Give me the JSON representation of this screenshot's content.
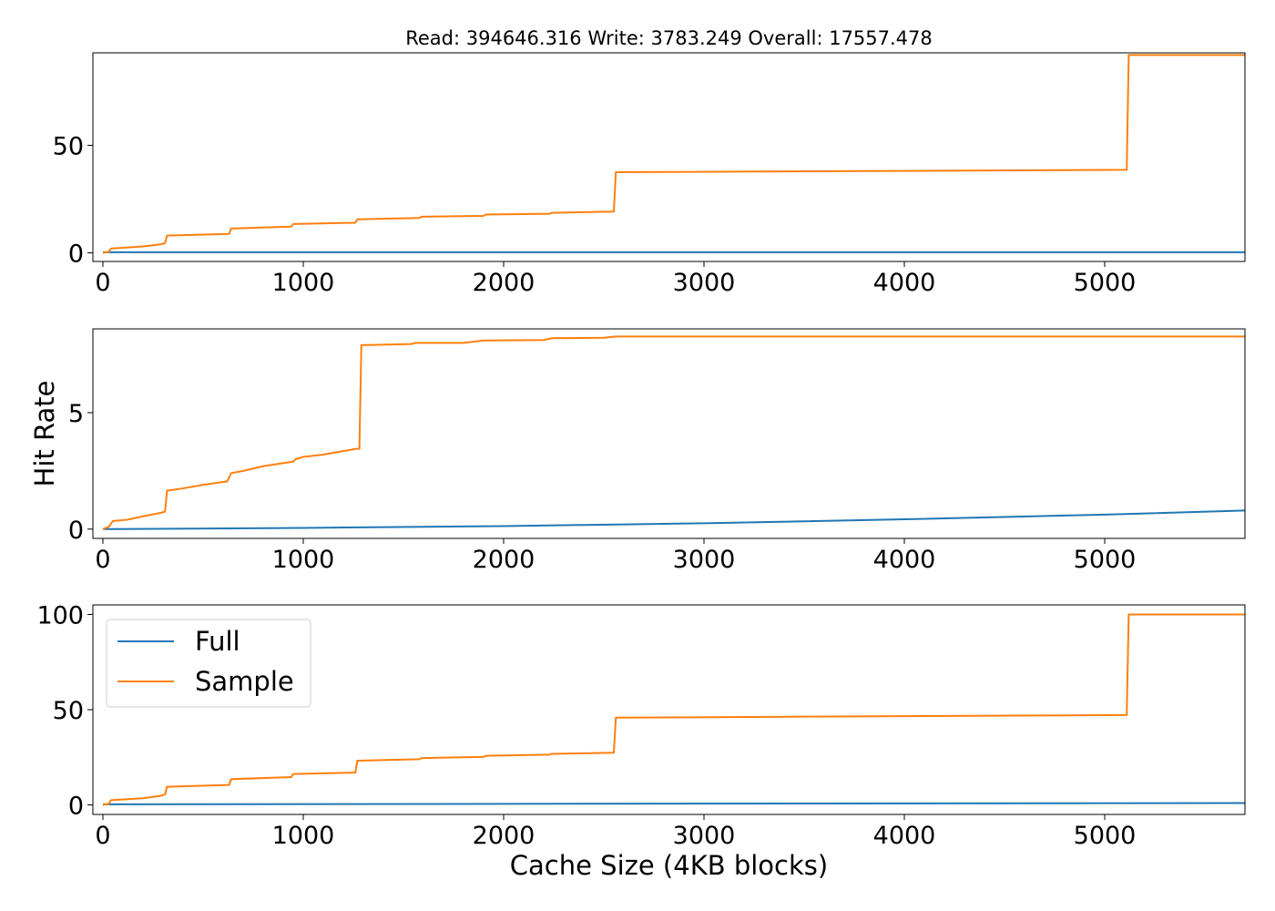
{
  "chart_data": [
    {
      "type": "line",
      "title": "Read: 394646.316 Write: 3783.249 Overall: 17557.478",
      "xlabel": "",
      "ylabel": "",
      "xlim": [
        -50,
        5700
      ],
      "ylim": [
        -4,
        93
      ],
      "xticks": [
        0,
        1000,
        2000,
        3000,
        4000,
        5000
      ],
      "yticks": [
        0,
        50
      ],
      "series": [
        {
          "name": "Full",
          "color": "#1f77b4",
          "x": [
            0,
            5700
          ],
          "y": [
            0.3,
            0.3
          ]
        },
        {
          "name": "Sample",
          "color": "#ff7f0e",
          "x": [
            0,
            30,
            40,
            200,
            290,
            310,
            320,
            630,
            640,
            940,
            950,
            1260,
            1270,
            1580,
            1590,
            1900,
            1910,
            2230,
            2240,
            2550,
            2560,
            5110,
            5120,
            5700
          ],
          "y": [
            0,
            0.5,
            2,
            3,
            4,
            4.5,
            8,
            8.8,
            11.3,
            12.2,
            13.4,
            14,
            15.6,
            16.2,
            16.8,
            17.2,
            17.8,
            18.2,
            18.6,
            19.2,
            37.5,
            38.6,
            92,
            92
          ]
        }
      ]
    },
    {
      "type": "line",
      "xlabel": "",
      "ylabel": "Hit Rate",
      "xlim": [
        -50,
        5700
      ],
      "ylim": [
        -0.4,
        8.6
      ],
      "xticks": [
        0,
        1000,
        2000,
        3000,
        4000,
        5000
      ],
      "yticks": [
        0,
        5
      ],
      "series": [
        {
          "name": "Full",
          "color": "#1f77b4",
          "x": [
            0,
            1000,
            2000,
            3000,
            4000,
            5000,
            5700
          ],
          "y": [
            0,
            0.05,
            0.13,
            0.25,
            0.42,
            0.62,
            0.8
          ]
        },
        {
          "name": "Sample",
          "color": "#ff7f0e",
          "x": [
            0,
            30,
            50,
            120,
            200,
            290,
            310,
            320,
            400,
            500,
            620,
            640,
            700,
            800,
            950,
            960,
            1000,
            1100,
            1200,
            1265,
            1280,
            1290,
            1540,
            1560,
            1800,
            1900,
            2200,
            2240,
            2500,
            2560,
            5700
          ],
          "y": [
            0,
            0.1,
            0.35,
            0.4,
            0.55,
            0.7,
            0.75,
            1.65,
            1.75,
            1.9,
            2.05,
            2.4,
            2.5,
            2.7,
            2.9,
            3.0,
            3.1,
            3.2,
            3.35,
            3.45,
            3.45,
            7.9,
            7.95,
            8.0,
            8.0,
            8.1,
            8.12,
            8.2,
            8.22,
            8.27,
            8.27
          ]
        }
      ]
    },
    {
      "type": "line",
      "xlabel": "Cache Size (4KB blocks)",
      "ylabel": "",
      "xlim": [
        -50,
        5700
      ],
      "ylim": [
        -5,
        105
      ],
      "xticks": [
        0,
        1000,
        2000,
        3000,
        4000,
        5000
      ],
      "yticks": [
        0,
        50,
        100
      ],
      "legend": "upper-left",
      "series": [
        {
          "name": "Full",
          "color": "#1f77b4",
          "x": [
            0,
            5700
          ],
          "y": [
            0.3,
            1.0
          ]
        },
        {
          "name": "Sample",
          "color": "#ff7f0e",
          "x": [
            0,
            30,
            40,
            200,
            290,
            310,
            320,
            630,
            640,
            940,
            950,
            1260,
            1270,
            1580,
            1590,
            1900,
            1910,
            2230,
            2240,
            2550,
            2560,
            5110,
            5120,
            5700
          ],
          "y": [
            0,
            0.6,
            2.5,
            3.5,
            4.8,
            5.5,
            9.5,
            10.5,
            13.5,
            14.6,
            16.2,
            17,
            23.2,
            24,
            24.6,
            25.2,
            25.8,
            26.4,
            26.8,
            27.4,
            45.8,
            47.2,
            100,
            100
          ]
        }
      ]
    }
  ]
}
